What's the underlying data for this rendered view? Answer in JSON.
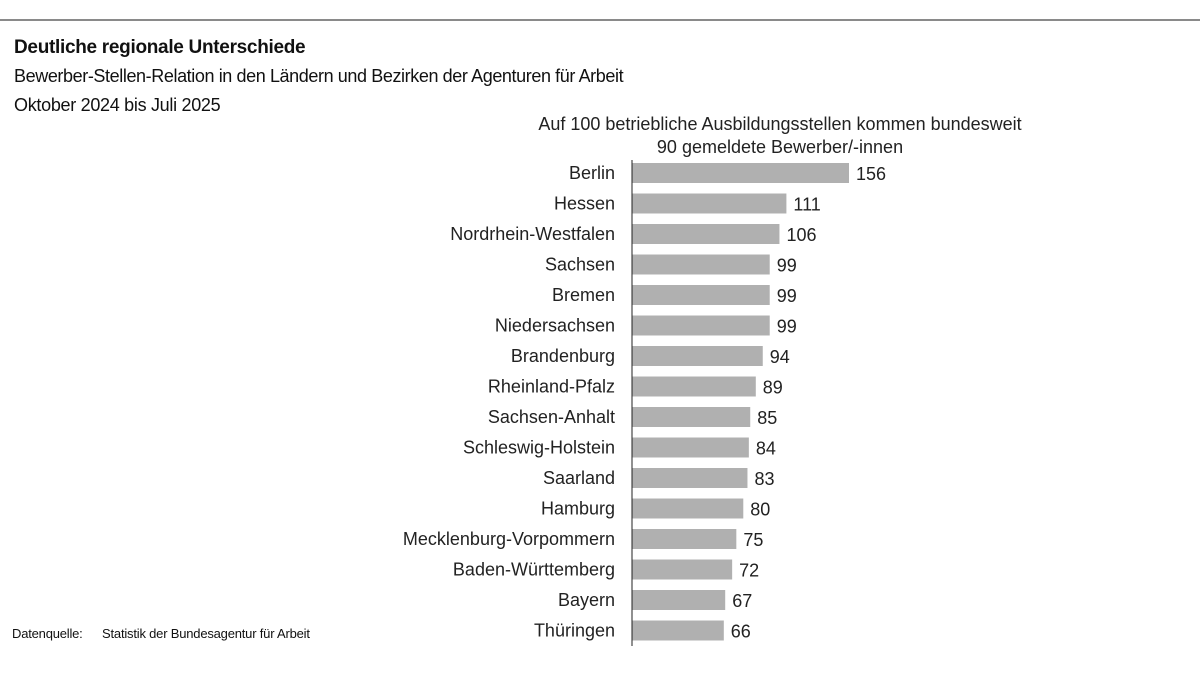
{
  "header": {
    "title": "Deutliche regionale Unterschiede",
    "subtitle": "Bewerber-Stellen-Relation in den Ländern und Bezirken der Agenturen für Arbeit",
    "period": "Oktober 2024 bis Juli 2025"
  },
  "footer": {
    "source_label": "Datenquelle:",
    "source_text": "Statistik der Bundesagentur für Arbeit"
  },
  "chart_data": {
    "type": "bar",
    "orientation": "horizontal",
    "annotation_line1": "Auf 100 betriebliche Ausbildungsstellen kommen bundesweit",
    "annotation_line2": "90 gemeldete Bewerber/-innen",
    "categories": [
      "Berlin",
      "Hessen",
      "Nordrhein-Westfalen",
      "Sachsen",
      "Bremen",
      "Niedersachsen",
      "Brandenburg",
      "Rheinland-Pfalz",
      "Sachsen-Anhalt",
      "Schleswig-Holstein",
      "Saarland",
      "Hamburg",
      "Mecklenburg-Vorpommern",
      "Baden-Württemberg",
      "Bayern",
      "Thüringen"
    ],
    "values": [
      156,
      111,
      106,
      99,
      99,
      99,
      94,
      89,
      85,
      84,
      83,
      80,
      75,
      72,
      67,
      66
    ],
    "bar_color": "#b0b0b0",
    "data_labels": true,
    "grid": false
  }
}
